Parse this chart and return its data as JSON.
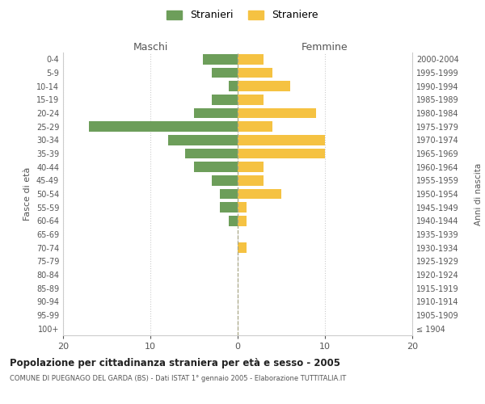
{
  "age_groups": [
    "100+",
    "95-99",
    "90-94",
    "85-89",
    "80-84",
    "75-79",
    "70-74",
    "65-69",
    "60-64",
    "55-59",
    "50-54",
    "45-49",
    "40-44",
    "35-39",
    "30-34",
    "25-29",
    "20-24",
    "15-19",
    "10-14",
    "5-9",
    "0-4"
  ],
  "birth_years": [
    "≤ 1904",
    "1905-1909",
    "1910-1914",
    "1915-1919",
    "1920-1924",
    "1925-1929",
    "1930-1934",
    "1935-1939",
    "1940-1944",
    "1945-1949",
    "1950-1954",
    "1955-1959",
    "1960-1964",
    "1965-1969",
    "1970-1974",
    "1975-1979",
    "1980-1984",
    "1985-1989",
    "1990-1994",
    "1995-1999",
    "2000-2004"
  ],
  "maschi": [
    0,
    0,
    0,
    0,
    0,
    0,
    0,
    0,
    1,
    2,
    2,
    3,
    5,
    6,
    8,
    17,
    5,
    3,
    1,
    3,
    4
  ],
  "femmine": [
    0,
    0,
    0,
    0,
    0,
    0,
    1,
    0,
    1,
    1,
    5,
    3,
    3,
    10,
    10,
    4,
    9,
    3,
    6,
    4,
    3
  ],
  "male_color": "#6d9e5a",
  "female_color": "#f5c242",
  "title": "Popolazione per cittadinanza straniera per età e sesso - 2005",
  "subtitle": "COMUNE DI PUEGNAGO DEL GARDA (BS) - Dati ISTAT 1° gennaio 2005 - Elaborazione TUTTITALIA.IT",
  "xlabel_left": "Maschi",
  "xlabel_right": "Femmine",
  "ylabel_left": "Fasce di età",
  "ylabel_right": "Anni di nascita",
  "legend_male": "Stranieri",
  "legend_female": "Straniere",
  "xlim": 20,
  "background_color": "#ffffff",
  "grid_color": "#cccccc"
}
